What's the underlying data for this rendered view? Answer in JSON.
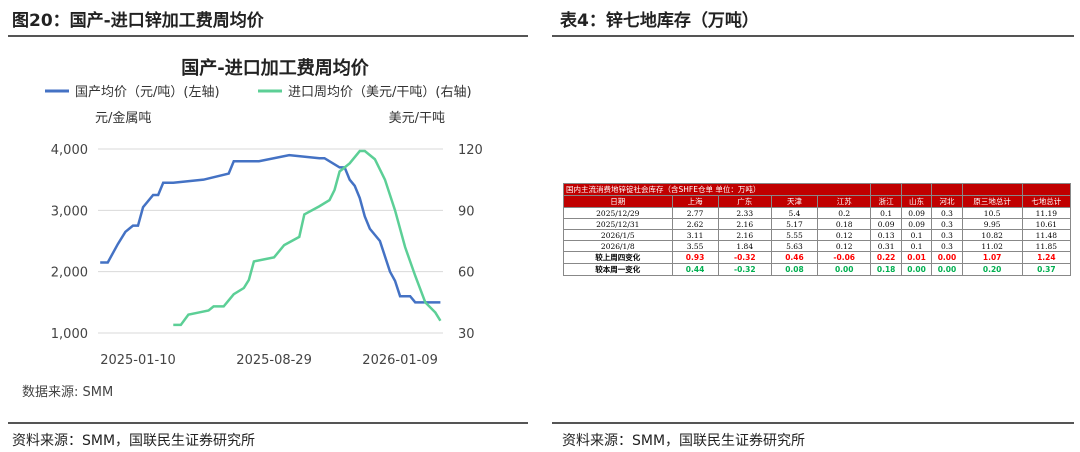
{
  "left_panel": {
    "title": "图20：国产-进口锌加工费周均价",
    "source": "资料来源：SMM，国联民生证券研究所"
  },
  "right_panel": {
    "title": "表4：锌七地库存（万吨）",
    "source": "资料来源：SMM，国联民生证券研究所"
  },
  "chart_data": {
    "type": "line",
    "title": "国产-进口加工费周均价",
    "ylabel": "元/金属吨",
    "y2label": "美元/干吨",
    "ylim": [
      1000,
      4000
    ],
    "y2lim": [
      30,
      120
    ],
    "yticks": [
      "1,000",
      "2,000",
      "3,000",
      "4,000"
    ],
    "y2ticks": [
      "30",
      "60",
      "90",
      "120"
    ],
    "xticks": [
      {
        "w": 0,
        "label": "2025-01-10"
      },
      {
        "w": 27,
        "label": "2025-08-29"
      },
      {
        "w": 52,
        "label": "2026-01-09"
      }
    ],
    "xunit": "weeks since 2025-01-10",
    "note": "数据来源: SMM",
    "series": [
      {
        "name": "国产均价（元/吨）(左轴)",
        "axis": "left",
        "color": "#4472c4",
        "x": [
          -7.5,
          -6,
          -4,
          -2.5,
          -1,
          0,
          1,
          3,
          4,
          5,
          6,
          7,
          13,
          18,
          19,
          22,
          24,
          30,
          36,
          37,
          40,
          41,
          42,
          43,
          44,
          45,
          46,
          47,
          48,
          49,
          50,
          51,
          52,
          53,
          54,
          55,
          57,
          60
        ],
        "y": [
          2150,
          2150,
          2450,
          2650,
          2750,
          2750,
          3050,
          3250,
          3250,
          3450,
          3450,
          3450,
          3500,
          3600,
          3800,
          3800,
          3800,
          3900,
          3850,
          3850,
          3700,
          3700,
          3500,
          3400,
          3200,
          2900,
          2700,
          2600,
          2500,
          2250,
          2000,
          1850,
          1600,
          1600,
          1600,
          1500,
          1500,
          1500
        ]
      },
      {
        "name": "进口周均价（美元/干吨）(右轴)",
        "axis": "right",
        "color": "#5ccf96",
        "x": [
          7,
          8.5,
          10,
          12,
          14,
          15,
          17,
          18,
          19,
          21,
          22,
          23,
          25,
          27,
          29,
          32,
          33,
          36,
          38,
          39,
          40,
          42,
          44,
          45,
          47,
          49,
          51,
          53,
          55,
          57,
          59,
          60
        ],
        "y": [
          34,
          34,
          39,
          40,
          41,
          43,
          43,
          46,
          49,
          52,
          56,
          65,
          66,
          67,
          73,
          77,
          88,
          92,
          95,
          100,
          109,
          113,
          119,
          119,
          115,
          105,
          90,
          72,
          58,
          45,
          40,
          36
        ]
      }
    ]
  },
  "table": {
    "caption": "国内主流消费地锌锭社会库存（含SHFE仓单 单位：万吨）",
    "headers": [
      "日期",
      "上海",
      "广东",
      "天津",
      "江苏",
      "浙江",
      "山东",
      "河北",
      "原三地总计",
      "七地总计"
    ],
    "rows": [
      [
        "2025/12/29",
        "2.77",
        "2.33",
        "5.4",
        "0.2",
        "0.1",
        "0.09",
        "0.3",
        "10.5",
        "11.19"
      ],
      [
        "2025/12/31",
        "2.62",
        "2.16",
        "5.17",
        "0.18",
        "0.09",
        "0.09",
        "0.3",
        "9.95",
        "10.61"
      ],
      [
        "2026/1/5",
        "3.11",
        "2.16",
        "5.55",
        "0.12",
        "0.13",
        "0.1",
        "0.3",
        "10.82",
        "11.48"
      ],
      [
        "2026/1/8",
        "3.55",
        "1.84",
        "5.63",
        "0.12",
        "0.31",
        "0.1",
        "0.3",
        "11.02",
        "11.85"
      ]
    ],
    "change_rows": [
      {
        "cells": [
          "较上周四变化",
          "0.93",
          "-0.32",
          "0.46",
          "-0.06",
          "0.22",
          "0.01",
          "0.00",
          "1.07",
          "1.24"
        ],
        "color": "red"
      },
      {
        "cells": [
          "较本周一变化",
          "0.44",
          "-0.32",
          "0.08",
          "0.00",
          "0.18",
          "0.00",
          "0.00",
          "0.20",
          "0.37"
        ],
        "color": "grn"
      }
    ]
  }
}
